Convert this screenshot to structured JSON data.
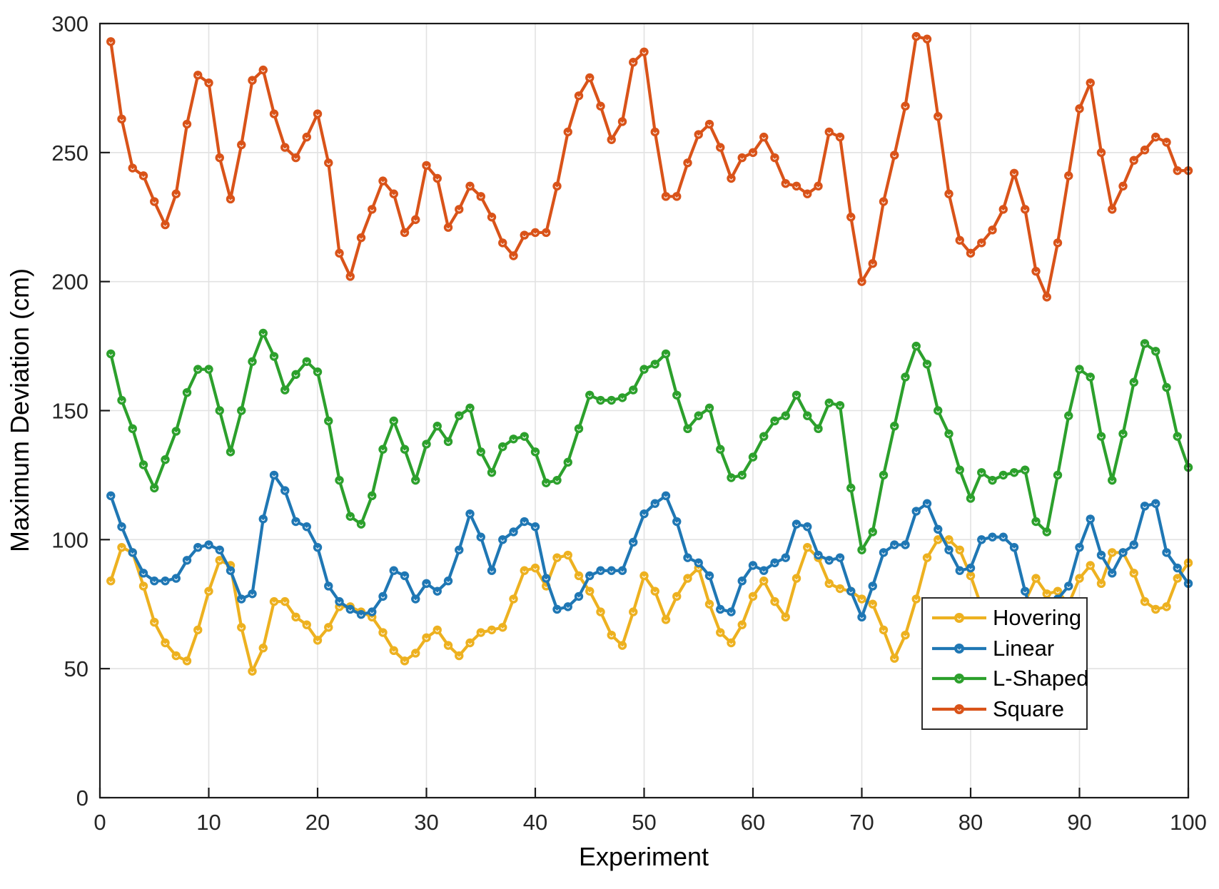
{
  "figure": {
    "xlabel": "Experiment",
    "ylabel": "Maximum Deviation (cm)"
  },
  "chart_data": {
    "type": "line",
    "title": "",
    "xlabel": "Experiment",
    "ylabel": "Maximum Deviation (cm)",
    "xlim": [
      0,
      100
    ],
    "ylim": [
      0,
      300
    ],
    "x_ticks": [
      0,
      10,
      20,
      30,
      40,
      50,
      60,
      70,
      80,
      90,
      100
    ],
    "y_ticks": [
      0,
      50,
      100,
      150,
      200,
      250,
      300
    ],
    "grid": true,
    "legend_position": "inside-bottom-right",
    "marker": "o",
    "x_description": "Experiment index 1-100",
    "colors": {
      "hovering": "#EDB120",
      "linear": "#1F77B4",
      "l_shaped": "#2CA02C",
      "square": "#D95319",
      "grid": "#E2E2E2",
      "axis": "#1a1a1a"
    },
    "series": [
      {
        "name": "Hovering",
        "color": "#EDB120",
        "values": [
          84,
          97,
          95,
          82,
          68,
          60,
          55,
          53,
          65,
          80,
          92,
          90,
          66,
          49,
          58,
          76,
          76,
          70,
          67,
          61,
          66,
          74,
          74,
          72,
          70,
          64,
          57,
          53,
          56,
          62,
          65,
          59,
          55,
          60,
          64,
          65,
          66,
          77,
          88,
          89,
          82,
          93,
          94,
          86,
          80,
          72,
          63,
          59,
          72,
          86,
          80,
          69,
          78,
          85,
          89,
          75,
          64,
          60,
          67,
          78,
          84,
          76,
          70,
          85,
          97,
          93,
          83,
          81,
          80,
          77,
          75,
          65,
          54,
          63,
          77,
          93,
          100,
          100,
          96,
          86,
          74,
          69,
          61,
          64,
          76,
          85,
          79,
          80,
          75,
          85,
          90,
          83,
          95,
          95,
          87,
          76,
          73,
          74,
          85,
          91
        ]
      },
      {
        "name": "Linear",
        "color": "#1F77B4",
        "values": [
          117,
          105,
          95,
          87,
          84,
          84,
          85,
          92,
          97,
          98,
          96,
          88,
          77,
          79,
          108,
          125,
          119,
          107,
          105,
          97,
          82,
          76,
          73,
          71,
          72,
          78,
          88,
          86,
          77,
          83,
          80,
          84,
          96,
          110,
          101,
          88,
          100,
          103,
          107,
          105,
          85,
          73,
          74,
          78,
          86,
          88,
          88,
          88,
          99,
          110,
          114,
          117,
          107,
          93,
          91,
          86,
          73,
          72,
          84,
          90,
          88,
          91,
          93,
          106,
          105,
          94,
          92,
          93,
          80,
          70,
          82,
          95,
          98,
          98,
          111,
          114,
          104,
          96,
          88,
          89,
          100,
          101,
          101,
          97,
          80,
          66,
          69,
          77,
          82,
          97,
          108,
          94,
          87,
          95,
          98,
          113,
          114,
          95,
          89,
          83
        ]
      },
      {
        "name": "L-Shaped",
        "color": "#2CA02C",
        "values": [
          172,
          154,
          143,
          129,
          120,
          131,
          142,
          157,
          166,
          166,
          150,
          134,
          150,
          169,
          180,
          171,
          158,
          164,
          169,
          165,
          146,
          123,
          109,
          106,
          117,
          135,
          146,
          135,
          123,
          137,
          144,
          138,
          148,
          151,
          134,
          126,
          136,
          139,
          140,
          134,
          122,
          123,
          130,
          143,
          156,
          154,
          154,
          155,
          158,
          166,
          168,
          172,
          156,
          143,
          148,
          151,
          135,
          124,
          125,
          132,
          140,
          146,
          148,
          156,
          148,
          143,
          153,
          152,
          120,
          96,
          103,
          125,
          144,
          163,
          175,
          168,
          150,
          141,
          127,
          116,
          126,
          123,
          125,
          126,
          127,
          107,
          103,
          125,
          148,
          166,
          163,
          140,
          123,
          141,
          161,
          176,
          173,
          159,
          140,
          128
        ]
      },
      {
        "name": "Square",
        "color": "#D95319",
        "values": [
          293,
          263,
          244,
          241,
          231,
          222,
          234,
          261,
          280,
          277,
          248,
          232,
          253,
          278,
          282,
          265,
          252,
          248,
          256,
          265,
          246,
          211,
          202,
          217,
          228,
          239,
          234,
          219,
          224,
          245,
          240,
          221,
          228,
          237,
          233,
          225,
          215,
          210,
          218,
          219,
          219,
          237,
          258,
          272,
          279,
          268,
          255,
          262,
          285,
          289,
          258,
          233,
          233,
          246,
          257,
          261,
          252,
          240,
          248,
          250,
          256,
          248,
          238,
          237,
          234,
          237,
          258,
          256,
          225,
          200,
          207,
          231,
          249,
          268,
          295,
          294,
          264,
          234,
          216,
          211,
          215,
          220,
          228,
          242,
          228,
          204,
          194,
          215,
          241,
          267,
          277,
          250,
          228,
          237,
          247,
          251,
          256,
          254,
          243,
          243
        ]
      }
    ]
  }
}
